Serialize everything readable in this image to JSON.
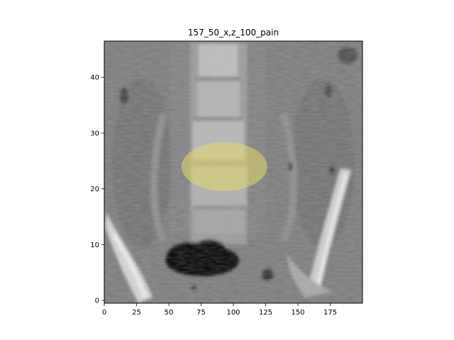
{
  "figure": {
    "title": "157_50_x,z_100_pain"
  },
  "chart_data": {
    "type": "heatmap",
    "title": "157_50_x,z_100_pain",
    "xlabel": "",
    "ylabel": "",
    "xlim": [
      0,
      200
    ],
    "ylim": [
      -0.5,
      46.5
    ],
    "x_ticks": [
      0,
      25,
      50,
      75,
      100,
      125,
      150,
      175
    ],
    "y_ticks": [
      0,
      10,
      20,
      30,
      40
    ],
    "x_tick_labels": [
      "0",
      "25",
      "50",
      "75",
      "100",
      "125",
      "150",
      "175"
    ],
    "y_tick_labels": [
      "0",
      "10",
      "20",
      "30",
      "40"
    ],
    "colormap": "gray",
    "overlay": {
      "shape": "circle",
      "center": [
        93,
        24
      ],
      "radius_x": 20,
      "radius_y": 4.5,
      "color": "#e4d86a",
      "alpha": 0.55
    }
  }
}
